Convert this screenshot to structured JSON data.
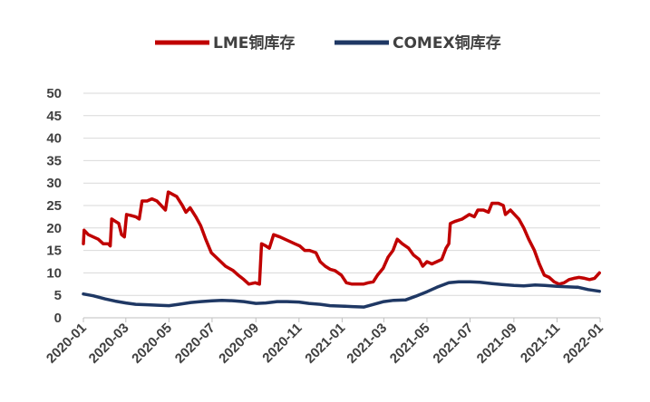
{
  "chart_data": {
    "type": "line",
    "title": "",
    "xlabel": "",
    "ylabel": "",
    "ylim": [
      0,
      50
    ],
    "yticks": [
      "0",
      "5",
      "10",
      "15",
      "20",
      "25",
      "30",
      "35",
      "40",
      "45",
      "50"
    ],
    "xticks": [
      "2020-01",
      "2020-03",
      "2020-05",
      "2020-07",
      "2020-09",
      "2020-11",
      "2021-01",
      "2021-03",
      "2021-05",
      "2021-07",
      "2021-09",
      "2021-11",
      "2022-01"
    ],
    "xlim": [
      "2020-01-01",
      "2022-01-01"
    ],
    "grid": true,
    "legend_position": "top",
    "series": [
      {
        "name": "LME铜库存",
        "color": "#c00000",
        "points": [
          [
            "2020-01-01",
            16.5
          ],
          [
            "2020-01-02",
            19.5
          ],
          [
            "2020-01-08",
            18.5
          ],
          [
            "2020-01-15",
            18.0
          ],
          [
            "2020-01-22",
            17.5
          ],
          [
            "2020-01-29",
            16.5
          ],
          [
            "2020-02-05",
            16.5
          ],
          [
            "2020-02-08",
            16.0
          ],
          [
            "2020-02-10",
            22.0
          ],
          [
            "2020-02-15",
            21.5
          ],
          [
            "2020-02-20",
            21.0
          ],
          [
            "2020-02-24",
            18.5
          ],
          [
            "2020-02-28",
            18.0
          ],
          [
            "2020-03-02",
            23.0
          ],
          [
            "2020-03-08",
            22.8
          ],
          [
            "2020-03-15",
            22.5
          ],
          [
            "2020-03-20",
            22.0
          ],
          [
            "2020-03-24",
            26.0
          ],
          [
            "2020-03-31",
            26.0
          ],
          [
            "2020-04-07",
            26.5
          ],
          [
            "2020-04-14",
            26.0
          ],
          [
            "2020-04-20",
            25.0
          ],
          [
            "2020-04-26",
            24.0
          ],
          [
            "2020-04-30",
            28.0
          ],
          [
            "2020-05-06",
            27.5
          ],
          [
            "2020-05-12",
            27.0
          ],
          [
            "2020-05-20",
            25.0
          ],
          [
            "2020-05-25",
            23.5
          ],
          [
            "2020-05-31",
            24.5
          ],
          [
            "2020-06-08",
            22.5
          ],
          [
            "2020-06-15",
            20.5
          ],
          [
            "2020-06-22",
            17.5
          ],
          [
            "2020-06-30",
            14.5
          ],
          [
            "2020-07-10",
            13.0
          ],
          [
            "2020-07-20",
            11.5
          ],
          [
            "2020-07-31",
            10.5
          ],
          [
            "2020-08-07",
            9.5
          ],
          [
            "2020-08-15",
            8.5
          ],
          [
            "2020-08-22",
            7.5
          ],
          [
            "2020-08-31",
            7.8
          ],
          [
            "2020-09-06",
            7.5
          ],
          [
            "2020-09-09",
            16.5
          ],
          [
            "2020-09-15",
            16.0
          ],
          [
            "2020-09-20",
            15.5
          ],
          [
            "2020-09-26",
            18.5
          ],
          [
            "2020-10-05",
            18.0
          ],
          [
            "2020-10-12",
            17.5
          ],
          [
            "2020-10-19",
            17.0
          ],
          [
            "2020-10-26",
            16.5
          ],
          [
            "2020-11-02",
            16.0
          ],
          [
            "2020-11-09",
            15.0
          ],
          [
            "2020-11-16",
            15.0
          ],
          [
            "2020-11-25",
            14.5
          ],
          [
            "2020-12-01",
            12.5
          ],
          [
            "2020-12-08",
            11.5
          ],
          [
            "2020-12-15",
            10.8
          ],
          [
            "2020-12-22",
            10.5
          ],
          [
            "2020-12-31",
            9.5
          ],
          [
            "2021-01-07",
            7.8
          ],
          [
            "2021-01-15",
            7.5
          ],
          [
            "2021-01-22",
            7.5
          ],
          [
            "2021-01-31",
            7.5
          ],
          [
            "2021-02-07",
            7.8
          ],
          [
            "2021-02-14",
            8.0
          ],
          [
            "2021-02-20",
            9.5
          ],
          [
            "2021-02-28",
            11.0
          ],
          [
            "2021-03-07",
            13.5
          ],
          [
            "2021-03-14",
            15.0
          ],
          [
            "2021-03-20",
            17.5
          ],
          [
            "2021-03-27",
            16.5
          ],
          [
            "2021-04-05",
            15.5
          ],
          [
            "2021-04-12",
            14.0
          ],
          [
            "2021-04-20",
            13.0
          ],
          [
            "2021-04-25",
            11.5
          ],
          [
            "2021-05-01",
            12.5
          ],
          [
            "2021-05-08",
            12.0
          ],
          [
            "2021-05-15",
            12.5
          ],
          [
            "2021-05-22",
            13.0
          ],
          [
            "2021-05-28",
            15.5
          ],
          [
            "2021-06-01",
            16.5
          ],
          [
            "2021-06-03",
            21.0
          ],
          [
            "2021-06-10",
            21.5
          ],
          [
            "2021-06-20",
            22.0
          ],
          [
            "2021-06-30",
            23.0
          ],
          [
            "2021-07-07",
            22.5
          ],
          [
            "2021-07-12",
            24.0
          ],
          [
            "2021-07-20",
            24.0
          ],
          [
            "2021-07-27",
            23.5
          ],
          [
            "2021-08-01",
            25.5
          ],
          [
            "2021-08-10",
            25.5
          ],
          [
            "2021-08-17",
            25.0
          ],
          [
            "2021-08-20",
            23.0
          ],
          [
            "2021-08-27",
            24.0
          ],
          [
            "2021-09-02",
            23.0
          ],
          [
            "2021-09-08",
            22.0
          ],
          [
            "2021-09-15",
            20.0
          ],
          [
            "2021-09-22",
            17.5
          ],
          [
            "2021-09-30",
            15.0
          ],
          [
            "2021-10-07",
            12.0
          ],
          [
            "2021-10-14",
            9.5
          ],
          [
            "2021-10-21",
            9.0
          ],
          [
            "2021-10-28",
            8.0
          ],
          [
            "2021-11-04",
            7.5
          ],
          [
            "2021-11-11",
            7.8
          ],
          [
            "2021-11-18",
            8.5
          ],
          [
            "2021-11-25",
            8.8
          ],
          [
            "2021-12-02",
            9.0
          ],
          [
            "2021-12-10",
            8.8
          ],
          [
            "2021-12-17",
            8.5
          ],
          [
            "2021-12-24",
            8.8
          ],
          [
            "2021-12-31",
            10.0
          ]
        ]
      },
      {
        "name": "COMEX铜库存",
        "color": "#1f3864",
        "points": [
          [
            "2020-01-01",
            5.3
          ],
          [
            "2020-01-15",
            4.9
          ],
          [
            "2020-02-01",
            4.2
          ],
          [
            "2020-02-15",
            3.7
          ],
          [
            "2020-03-01",
            3.3
          ],
          [
            "2020-03-15",
            3.0
          ],
          [
            "2020-04-01",
            2.9
          ],
          [
            "2020-04-15",
            2.8
          ],
          [
            "2020-05-01",
            2.7
          ],
          [
            "2020-05-15",
            3.0
          ],
          [
            "2020-06-01",
            3.4
          ],
          [
            "2020-06-15",
            3.6
          ],
          [
            "2020-07-01",
            3.8
          ],
          [
            "2020-07-15",
            3.9
          ],
          [
            "2020-08-01",
            3.8
          ],
          [
            "2020-08-15",
            3.6
          ],
          [
            "2020-09-01",
            3.2
          ],
          [
            "2020-09-15",
            3.3
          ],
          [
            "2020-10-01",
            3.6
          ],
          [
            "2020-10-15",
            3.6
          ],
          [
            "2020-11-01",
            3.5
          ],
          [
            "2020-11-15",
            3.2
          ],
          [
            "2020-12-01",
            3.0
          ],
          [
            "2020-12-15",
            2.7
          ],
          [
            "2021-01-01",
            2.6
          ],
          [
            "2021-01-15",
            2.5
          ],
          [
            "2021-02-01",
            2.4
          ],
          [
            "2021-02-15",
            3.0
          ],
          [
            "2021-03-01",
            3.6
          ],
          [
            "2021-03-15",
            3.9
          ],
          [
            "2021-04-01",
            4.0
          ],
          [
            "2021-04-15",
            4.8
          ],
          [
            "2021-05-01",
            5.8
          ],
          [
            "2021-05-15",
            6.8
          ],
          [
            "2021-06-01",
            7.8
          ],
          [
            "2021-06-15",
            8.0
          ],
          [
            "2021-07-01",
            8.0
          ],
          [
            "2021-07-15",
            7.9
          ],
          [
            "2021-08-01",
            7.6
          ],
          [
            "2021-08-15",
            7.4
          ],
          [
            "2021-09-01",
            7.2
          ],
          [
            "2021-09-15",
            7.1
          ],
          [
            "2021-10-01",
            7.3
          ],
          [
            "2021-10-15",
            7.2
          ],
          [
            "2021-11-01",
            7.0
          ],
          [
            "2021-11-15",
            6.9
          ],
          [
            "2021-12-01",
            6.8
          ],
          [
            "2021-12-15",
            6.3
          ],
          [
            "2021-12-31",
            5.9
          ]
        ]
      }
    ]
  }
}
